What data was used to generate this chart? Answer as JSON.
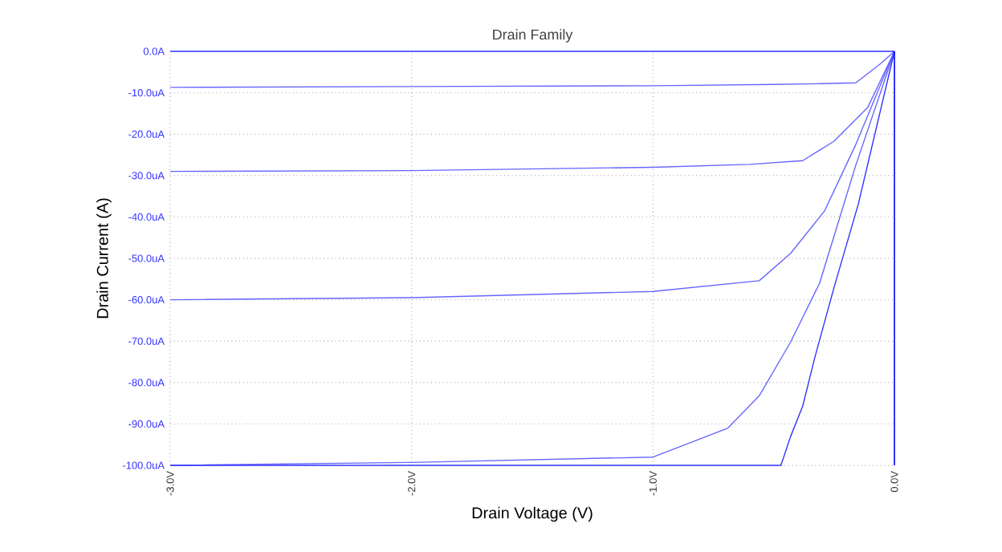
{
  "chart_data": {
    "type": "line",
    "title": "Drain Family",
    "xlabel": "Drain Voltage (V)",
    "ylabel": "Drain Current (A)",
    "xlim": [
      -3,
      0
    ],
    "ylim": [
      -100,
      0
    ],
    "xticks": [
      {
        "value": -3,
        "label": "-3.0V"
      },
      {
        "value": -2,
        "label": "-2.0V"
      },
      {
        "value": -1,
        "label": "-1.0V"
      },
      {
        "value": 0,
        "label": "0.0V"
      }
    ],
    "yticks": [
      {
        "value": 0,
        "label": "0.0A"
      },
      {
        "value": -10,
        "label": "-10.0uA"
      },
      {
        "value": -20,
        "label": "-20.0uA"
      },
      {
        "value": -30,
        "label": "-30.0uA"
      },
      {
        "value": -40,
        "label": "-40.0uA"
      },
      {
        "value": -50,
        "label": "-50.0uA"
      },
      {
        "value": -60,
        "label": "-60.0uA"
      },
      {
        "value": -70,
        "label": "-70.0uA"
      },
      {
        "value": -80,
        "label": "-80.0uA"
      },
      {
        "value": -90,
        "label": "-90.0uA"
      },
      {
        "value": -100,
        "label": "-100.0uA"
      }
    ],
    "grid": true,
    "marker": "none",
    "line_style": "solid",
    "series": [
      {
        "color": "#3333ff",
        "x": [
          -3,
          -1.5,
          0
        ],
        "values": [
          0,
          0,
          0
        ]
      },
      {
        "color": "#6666ff",
        "x": [
          -3,
          -2,
          -1,
          -0.5,
          -0.3,
          -0.16,
          -0.06,
          0
        ],
        "values": [
          -8.7,
          -8.5,
          -8.3,
          -8.0,
          -7.8,
          -7.6,
          -3.1,
          0
        ]
      },
      {
        "color": "#6666ff",
        "x": [
          -3,
          -2,
          -1,
          -0.6,
          -0.38,
          -0.25,
          -0.11,
          0
        ],
        "values": [
          -29,
          -28.8,
          -28,
          -27.3,
          -26.4,
          -21.7,
          -13.5,
          0
        ]
      },
      {
        "color": "#6666ff",
        "x": [
          -3,
          -2,
          -1,
          -0.56,
          -0.43,
          -0.29,
          -0.16,
          0
        ],
        "values": [
          -60,
          -59.5,
          -58,
          -55.4,
          -48.8,
          -38.6,
          -22.5,
          0
        ]
      },
      {
        "color": "#6666ff",
        "x": [
          -3,
          -2,
          -1,
          -0.69,
          -0.56,
          -0.43,
          -0.31,
          -0.16,
          0
        ],
        "values": [
          -100,
          -99.3,
          -98,
          -91,
          -83.2,
          -70.2,
          -56,
          -27.5,
          0
        ]
      },
      {
        "color": "#3333ff",
        "x": [
          -3,
          -0.47,
          -0.43,
          -0.38,
          -0.33,
          -0.25,
          -0.15,
          0
        ],
        "values": [
          -100,
          -100,
          -93,
          -85.7,
          -74,
          -57,
          -37,
          0
        ]
      }
    ]
  }
}
